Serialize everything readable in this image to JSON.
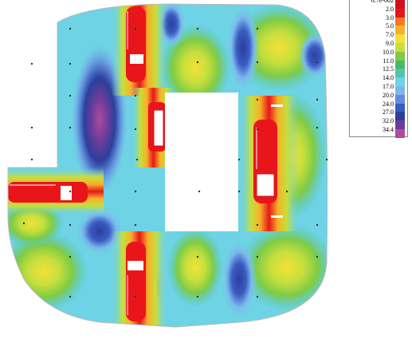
{
  "legend": {
    "items": [
      {
        "label": "6.7e-002",
        "color": "#d0121d"
      },
      {
        "label": "2.0",
        "color": "#e8161b"
      },
      {
        "label": "3.0",
        "color": "#f27a1f"
      },
      {
        "label": "5.0",
        "color": "#f6b02a"
      },
      {
        "label": "7.0",
        "color": "#f3e038"
      },
      {
        "label": "9.0",
        "color": "#c6df3c"
      },
      {
        "label": "10.0",
        "color": "#7fcb46"
      },
      {
        "label": "11.0",
        "color": "#4cb86a"
      },
      {
        "label": "12.5",
        "color": "#4ec6b0"
      },
      {
        "label": "14.0",
        "color": "#6ed3e4"
      },
      {
        "label": "17.0",
        "color": "#7bb7ec"
      },
      {
        "label": "20.0",
        "color": "#5f8fdc"
      },
      {
        "label": "24.0",
        "color": "#3a5bc2"
      },
      {
        "label": "27.0",
        "color": "#2d3f9c"
      },
      {
        "label": "32.0",
        "color": "#6a3d9a"
      },
      {
        "label": "34.4",
        "color": "#b04aa0"
      }
    ]
  }
}
